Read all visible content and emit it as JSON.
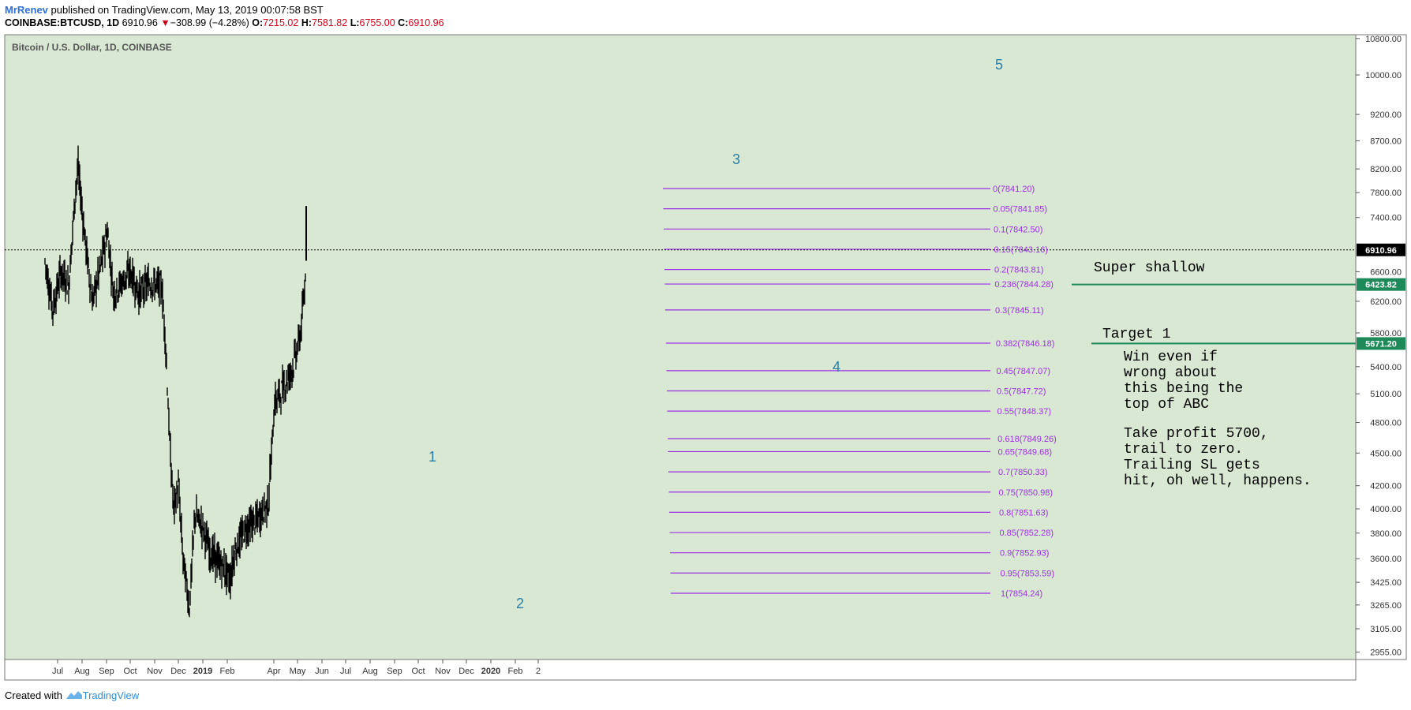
{
  "header": {
    "author": "MrRenev",
    "published": " published on TradingView.com, May 13, 2019 00:07:58 BST",
    "symbol_line_prefix": "COINBASE:BTCUSD, 1D",
    "last": "6910.96",
    "change_arrow": "▼",
    "change": "−308.99 (−4.28%)",
    "o_label": "O:",
    "o": "7215.02",
    "h_label": "H:",
    "h": "7581.82",
    "l_label": "L:",
    "l": "6755.00",
    "c_label": "C:",
    "c": "6910.96"
  },
  "footer": {
    "created": "Created with",
    "brand": "TradingView"
  },
  "colors": {
    "background": "#d8e8d3",
    "fib": "#9b30e3",
    "green_line": "#1e8a5a",
    "wave_label": "#2a7fa8",
    "candle": "#000000"
  },
  "chart_data": {
    "type": "candlestick",
    "title": "Bitcoin / U.S. Dollar, 1D, COINBASE",
    "scale": "log",
    "y_ticks": [
      "10800.00",
      "10000.00",
      "9200.00",
      "8700.00",
      "8200.00",
      "7800.00",
      "7400.00",
      "6600.00",
      "6200.00",
      "5800.00",
      "5400.00",
      "5100.00",
      "4800.00",
      "4500.00",
      "4200.00",
      "4000.00",
      "3800.00",
      "3600.00",
      "3425.00",
      "3265.00",
      "3105.00",
      "2955.00"
    ],
    "x_ticks": [
      "Jul",
      "Aug",
      "Sep",
      "Oct",
      "Nov",
      "Dec",
      "2019",
      "Feb",
      "Apr",
      "May",
      "Jun",
      "Jul",
      "Aug",
      "Sep",
      "Oct",
      "Nov",
      "Dec",
      "2020",
      "Feb",
      "2"
    ],
    "price_tags": [
      {
        "label": "6910.96",
        "value": 6910.96,
        "style": "black"
      },
      {
        "label": "6423.82",
        "value": 6423.82,
        "style": "green"
      },
      {
        "label": "5671.20",
        "value": 5671.2,
        "style": "green"
      }
    ],
    "current_price": 6910.96,
    "series": [
      {
        "type": "candle",
        "points": [
          [
            "2018-06-15",
            6600,
            6800,
            6500,
            6750
          ],
          [
            "2018-06-25",
            6200,
            6500,
            5850,
            6100
          ],
          [
            "2018-07-05",
            6500,
            6750,
            6400,
            6600
          ],
          [
            "2018-07-15",
            6300,
            6500,
            6200,
            6400
          ],
          [
            "2018-07-24",
            7500,
            8000,
            7400,
            7900
          ],
          [
            "2018-07-27",
            8200,
            8500,
            8000,
            8200
          ],
          [
            "2018-08-05",
            7000,
            7200,
            6900,
            7050
          ],
          [
            "2018-08-14",
            6300,
            6400,
            5900,
            6200
          ],
          [
            "2018-08-25",
            6700,
            6800,
            6500,
            6700
          ],
          [
            "2018-09-02",
            7200,
            7400,
            7100,
            7200
          ],
          [
            "2018-09-10",
            6300,
            6400,
            6200,
            6300
          ],
          [
            "2018-09-20",
            6400,
            6500,
            6300,
            6450
          ],
          [
            "2018-10-01",
            6600,
            6700,
            6500,
            6600
          ],
          [
            "2018-10-12",
            6250,
            6400,
            6100,
            6300
          ],
          [
            "2018-10-25",
            6450,
            6500,
            6400,
            6450
          ],
          [
            "2018-11-10",
            6400,
            6500,
            6350,
            6400
          ],
          [
            "2018-11-15",
            5600,
            5800,
            5500,
            5650
          ],
          [
            "2018-11-20",
            4500,
            4800,
            4400,
            4600
          ],
          [
            "2018-11-25",
            3800,
            4200,
            3700,
            4000
          ],
          [
            "2018-12-01",
            4100,
            4300,
            3900,
            4200
          ],
          [
            "2018-12-07",
            3500,
            3700,
            3400,
            3600
          ],
          [
            "2018-12-15",
            3250,
            3350,
            3150,
            3250
          ],
          [
            "2018-12-22",
            3900,
            4100,
            3800,
            3950
          ],
          [
            "2019-01-01",
            3800,
            3900,
            3700,
            3850
          ],
          [
            "2019-01-10",
            3700,
            4000,
            3600,
            3650
          ],
          [
            "2019-01-25",
            3550,
            3650,
            3450,
            3550
          ],
          [
            "2019-02-05",
            3400,
            3500,
            3350,
            3450
          ],
          [
            "2019-02-10",
            3600,
            3700,
            3550,
            3650
          ],
          [
            "2019-02-25",
            3800,
            4200,
            3750,
            3850
          ],
          [
            "2019-03-10",
            3900,
            3950,
            3850,
            3900
          ],
          [
            "2019-03-25",
            4000,
            4100,
            3950,
            4050
          ],
          [
            "2019-04-02",
            4900,
            5100,
            4800,
            5000
          ],
          [
            "2019-04-15",
            5100,
            5300,
            5000,
            5200
          ],
          [
            "2019-04-25",
            5200,
            5600,
            5100,
            5400
          ],
          [
            "2019-05-05",
            5700,
            5900,
            5600,
            5800
          ],
          [
            "2019-05-10",
            6300,
            6500,
            6100,
            6350
          ],
          [
            "2019-05-12",
            7215.02,
            7581.82,
            6755,
            6910.96
          ]
        ]
      }
    ],
    "fib_retracement": {
      "levels": [
        {
          "label": "0(7841.20)",
          "ratio": 0
        },
        {
          "label": "0.05(7841.85)",
          "ratio": 0.05
        },
        {
          "label": "0.1(7842.50)",
          "ratio": 0.1
        },
        {
          "label": "0.15(7843.16)",
          "ratio": 0.15
        },
        {
          "label": "0.2(7843.81)",
          "ratio": 0.2
        },
        {
          "label": "0.236(7844.28)",
          "ratio": 0.236
        },
        {
          "label": "0.3(7845.11)",
          "ratio": 0.3
        },
        {
          "label": "0.382(7846.18)",
          "ratio": 0.382
        },
        {
          "label": "0.45(7847.07)",
          "ratio": 0.45
        },
        {
          "label": "0.5(7847.72)",
          "ratio": 0.5
        },
        {
          "label": "0.55(7848.37)",
          "ratio": 0.55
        },
        {
          "label": "0.618(7849.26)",
          "ratio": 0.618
        },
        {
          "label": "0.65(7849.68)",
          "ratio": 0.65
        },
        {
          "label": "0.7(7850.33)",
          "ratio": 0.7
        },
        {
          "label": "0.75(7850.98)",
          "ratio": 0.75
        },
        {
          "label": "0.8(7851.63)",
          "ratio": 0.8
        },
        {
          "label": "0.85(7852.28)",
          "ratio": 0.85
        },
        {
          "label": "0.9(7852.93)",
          "ratio": 0.9
        },
        {
          "label": "0.95(7853.59)",
          "ratio": 0.95
        },
        {
          "label": "1(7854.24)",
          "ratio": 1
        }
      ]
    },
    "horizontal_lines": [
      {
        "name": "super-shallow",
        "value": 6423.82
      },
      {
        "name": "target-1",
        "value": 5671.2
      }
    ],
    "annotations": [
      {
        "name": "wave-1",
        "text": "1"
      },
      {
        "name": "wave-2",
        "text": "2"
      },
      {
        "name": "wave-3",
        "text": "3"
      },
      {
        "name": "wave-4",
        "text": "4"
      },
      {
        "name": "wave-5",
        "text": "5"
      },
      {
        "name": "super-shallow-note",
        "text": "Super shallow"
      },
      {
        "name": "target-1-note",
        "text": "Target 1"
      },
      {
        "name": "note-line-1",
        "text": "Win even if"
      },
      {
        "name": "note-line-2",
        "text": "wrong about"
      },
      {
        "name": "note-line-3",
        "text": "this being the"
      },
      {
        "name": "note-line-4",
        "text": "top of ABC"
      },
      {
        "name": "note-line-5",
        "text": "Take profit 5700,"
      },
      {
        "name": "note-line-6",
        "text": "trail to zero."
      },
      {
        "name": "note-line-7",
        "text": "Trailing SL gets"
      },
      {
        "name": "note-line-8",
        "text": "hit, oh well, happens."
      }
    ]
  }
}
